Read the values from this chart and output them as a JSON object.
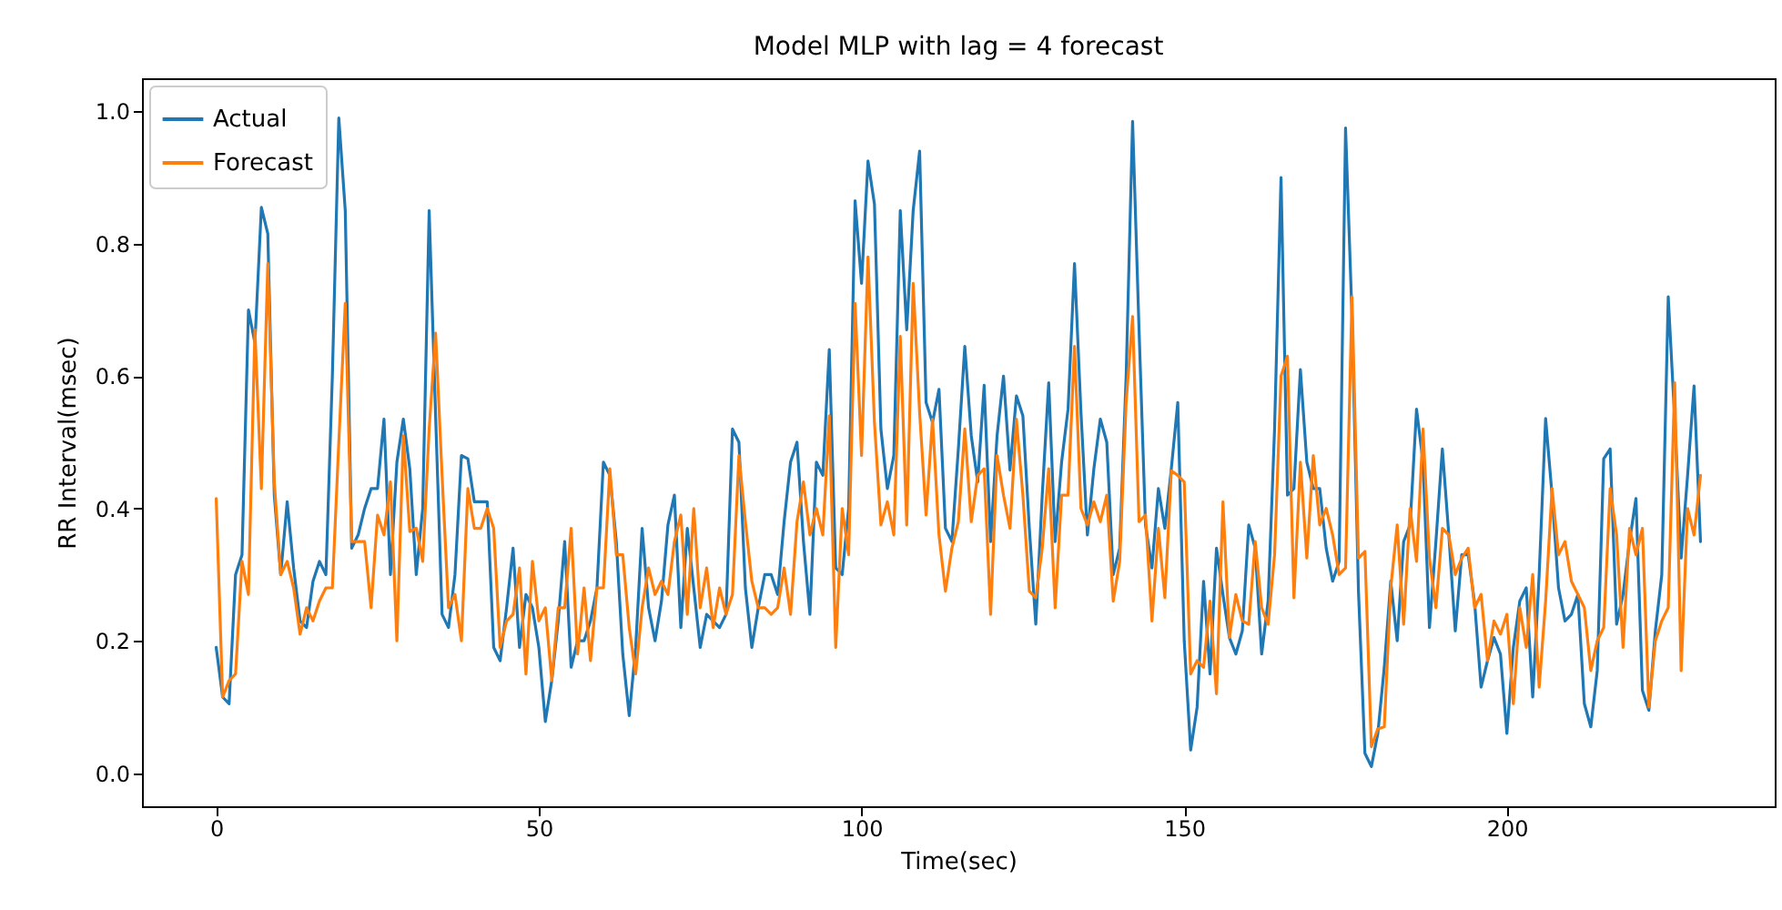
{
  "chart_data": {
    "type": "line",
    "title": "Model MLP with lag = 4 forecast",
    "xlabel": "Time(sec)",
    "ylabel": "RR Interval(msec)",
    "x": [
      0,
      1,
      2,
      3,
      4,
      5,
      6,
      7,
      8,
      9,
      10,
      11,
      12,
      13,
      14,
      15,
      16,
      17,
      18,
      19,
      20,
      21,
      22,
      23,
      24,
      25,
      26,
      27,
      28,
      29,
      30,
      31,
      32,
      33,
      34,
      35,
      36,
      37,
      38,
      39,
      40,
      41,
      42,
      43,
      44,
      45,
      46,
      47,
      48,
      49,
      50,
      51,
      52,
      53,
      54,
      55,
      56,
      57,
      58,
      59,
      60,
      61,
      62,
      63,
      64,
      65,
      66,
      67,
      68,
      69,
      70,
      71,
      72,
      73,
      74,
      75,
      76,
      77,
      78,
      79,
      80,
      81,
      82,
      83,
      84,
      85,
      86,
      87,
      88,
      89,
      90,
      91,
      92,
      93,
      94,
      95,
      96,
      97,
      98,
      99,
      100,
      101,
      102,
      103,
      104,
      105,
      106,
      107,
      108,
      109,
      110,
      111,
      112,
      113,
      114,
      115,
      116,
      117,
      118,
      119,
      120,
      121,
      122,
      123,
      124,
      125,
      126,
      127,
      128,
      129,
      130,
      131,
      132,
      133,
      134,
      135,
      136,
      137,
      138,
      139,
      140,
      141,
      142,
      143,
      144,
      145,
      146,
      147,
      148,
      149,
      150,
      151,
      152,
      153,
      154,
      155,
      156,
      157,
      158,
      159,
      160,
      161,
      162,
      163,
      164,
      165,
      166,
      167,
      168,
      169,
      170,
      171,
      172,
      173,
      174,
      175,
      176,
      177,
      178,
      179,
      180,
      181,
      182,
      183,
      184,
      185,
      186,
      187,
      188,
      189,
      190,
      191,
      192,
      193,
      194,
      195,
      196,
      197,
      198,
      199,
      200,
      201,
      202,
      203,
      204,
      205,
      206,
      207,
      208,
      209,
      210,
      211,
      212,
      213,
      214,
      215,
      216,
      217,
      218,
      219,
      220,
      221,
      222,
      223,
      224,
      225,
      226,
      227,
      228,
      229,
      230
    ],
    "series": [
      {
        "name": "Actual",
        "color": "#1f77b4",
        "values": [
          0.19,
          0.115,
          0.105,
          0.3,
          0.33,
          0.7,
          0.65,
          0.855,
          0.815,
          0.42,
          0.3,
          0.41,
          0.31,
          0.23,
          0.22,
          0.29,
          0.32,
          0.3,
          0.6,
          0.99,
          0.85,
          0.34,
          0.36,
          0.4,
          0.43,
          0.43,
          0.535,
          0.3,
          0.47,
          0.535,
          0.46,
          0.3,
          0.4,
          0.85,
          0.54,
          0.24,
          0.22,
          0.3,
          0.48,
          0.475,
          0.41,
          0.41,
          0.41,
          0.19,
          0.17,
          0.25,
          0.34,
          0.19,
          0.27,
          0.25,
          0.19,
          0.078,
          0.14,
          0.23,
          0.35,
          0.16,
          0.2,
          0.2,
          0.23,
          0.28,
          0.47,
          0.45,
          0.35,
          0.18,
          0.087,
          0.19,
          0.37,
          0.25,
          0.2,
          0.26,
          0.375,
          0.42,
          0.22,
          0.37,
          0.28,
          0.19,
          0.24,
          0.23,
          0.22,
          0.24,
          0.52,
          0.5,
          0.28,
          0.19,
          0.25,
          0.3,
          0.3,
          0.27,
          0.38,
          0.47,
          0.5,
          0.35,
          0.24,
          0.47,
          0.45,
          0.64,
          0.31,
          0.3,
          0.4,
          0.865,
          0.74,
          0.925,
          0.86,
          0.52,
          0.43,
          0.48,
          0.85,
          0.67,
          0.85,
          0.94,
          0.56,
          0.53,
          0.58,
          0.37,
          0.35,
          0.49,
          0.645,
          0.51,
          0.44,
          0.586,
          0.35,
          0.51,
          0.6,
          0.458,
          0.57,
          0.54,
          0.37,
          0.225,
          0.42,
          0.59,
          0.35,
          0.47,
          0.55,
          0.77,
          0.545,
          0.36,
          0.46,
          0.535,
          0.5,
          0.3,
          0.34,
          0.6,
          0.985,
          0.67,
          0.375,
          0.31,
          0.43,
          0.37,
          0.46,
          0.56,
          0.2,
          0.035,
          0.1,
          0.29,
          0.15,
          0.34,
          0.27,
          0.205,
          0.18,
          0.215,
          0.375,
          0.34,
          0.18,
          0.26,
          0.52,
          0.9,
          0.42,
          0.43,
          0.61,
          0.47,
          0.43,
          0.43,
          0.34,
          0.29,
          0.32,
          0.975,
          0.69,
          0.275,
          0.03,
          0.01,
          0.06,
          0.16,
          0.29,
          0.2,
          0.35,
          0.375,
          0.55,
          0.47,
          0.22,
          0.35,
          0.49,
          0.36,
          0.215,
          0.33,
          0.33,
          0.257,
          0.13,
          0.17,
          0.205,
          0.18,
          0.06,
          0.19,
          0.26,
          0.28,
          0.115,
          0.3,
          0.536,
          0.42,
          0.28,
          0.23,
          0.24,
          0.27,
          0.105,
          0.07,
          0.155,
          0.475,
          0.49,
          0.225,
          0.27,
          0.35,
          0.415,
          0.125,
          0.095,
          0.215,
          0.3,
          0.72,
          0.535,
          0.325,
          0.45,
          0.585,
          0.35
        ]
      },
      {
        "name": "Forecast",
        "color": "#ff7f0e",
        "values": [
          0.415,
          0.115,
          0.14,
          0.15,
          0.32,
          0.27,
          0.67,
          0.43,
          0.77,
          0.44,
          0.3,
          0.32,
          0.28,
          0.21,
          0.25,
          0.23,
          0.26,
          0.28,
          0.28,
          0.5,
          0.71,
          0.35,
          0.35,
          0.35,
          0.25,
          0.39,
          0.36,
          0.44,
          0.2,
          0.51,
          0.365,
          0.37,
          0.32,
          0.52,
          0.665,
          0.45,
          0.25,
          0.27,
          0.2,
          0.43,
          0.37,
          0.37,
          0.4,
          0.37,
          0.19,
          0.23,
          0.24,
          0.31,
          0.15,
          0.32,
          0.23,
          0.25,
          0.14,
          0.25,
          0.25,
          0.37,
          0.18,
          0.28,
          0.17,
          0.28,
          0.28,
          0.46,
          0.33,
          0.33,
          0.22,
          0.15,
          0.25,
          0.31,
          0.27,
          0.29,
          0.27,
          0.35,
          0.39,
          0.24,
          0.4,
          0.25,
          0.31,
          0.22,
          0.28,
          0.24,
          0.27,
          0.48,
          0.38,
          0.29,
          0.25,
          0.25,
          0.24,
          0.25,
          0.31,
          0.24,
          0.38,
          0.44,
          0.36,
          0.4,
          0.36,
          0.54,
          0.19,
          0.4,
          0.33,
          0.71,
          0.48,
          0.78,
          0.53,
          0.375,
          0.41,
          0.36,
          0.66,
          0.375,
          0.74,
          0.545,
          0.39,
          0.535,
          0.36,
          0.275,
          0.34,
          0.38,
          0.52,
          0.38,
          0.45,
          0.46,
          0.24,
          0.48,
          0.42,
          0.37,
          0.535,
          0.42,
          0.275,
          0.265,
          0.34,
          0.46,
          0.25,
          0.42,
          0.42,
          0.645,
          0.4,
          0.375,
          0.41,
          0.38,
          0.42,
          0.26,
          0.32,
          0.56,
          0.69,
          0.38,
          0.39,
          0.23,
          0.37,
          0.265,
          0.457,
          0.45,
          0.44,
          0.15,
          0.17,
          0.16,
          0.26,
          0.12,
          0.41,
          0.205,
          0.27,
          0.23,
          0.225,
          0.35,
          0.25,
          0.225,
          0.33,
          0.6,
          0.63,
          0.265,
          0.47,
          0.325,
          0.48,
          0.375,
          0.4,
          0.36,
          0.3,
          0.31,
          0.72,
          0.325,
          0.335,
          0.04,
          0.067,
          0.07,
          0.28,
          0.375,
          0.225,
          0.4,
          0.32,
          0.52,
          0.325,
          0.25,
          0.37,
          0.36,
          0.3,
          0.325,
          0.34,
          0.25,
          0.27,
          0.17,
          0.23,
          0.21,
          0.24,
          0.105,
          0.25,
          0.19,
          0.3,
          0.13,
          0.26,
          0.43,
          0.33,
          0.35,
          0.29,
          0.27,
          0.25,
          0.155,
          0.2,
          0.22,
          0.43,
          0.36,
          0.19,
          0.37,
          0.33,
          0.37,
          0.1,
          0.2,
          0.23,
          0.25,
          0.59,
          0.155,
          0.4,
          0.36,
          0.45
        ]
      }
    ],
    "xlim": [
      -11.5,
      241.5
    ],
    "xticks": [
      0,
      50,
      100,
      150,
      200
    ],
    "ylim": [
      -0.05,
      1.05
    ],
    "yticks": [
      {
        "value": 0,
        "label": "0.0"
      },
      {
        "value": 0.2,
        "label": "0.2"
      },
      {
        "value": 0.4,
        "label": "0.4"
      },
      {
        "value": 0.6,
        "label": "0.6"
      },
      {
        "value": 0.8,
        "label": "0.8"
      },
      {
        "value": 1,
        "label": "1.0"
      }
    ],
    "legend": "top left",
    "grid": false,
    "marker": "none",
    "line_style": "solid"
  }
}
